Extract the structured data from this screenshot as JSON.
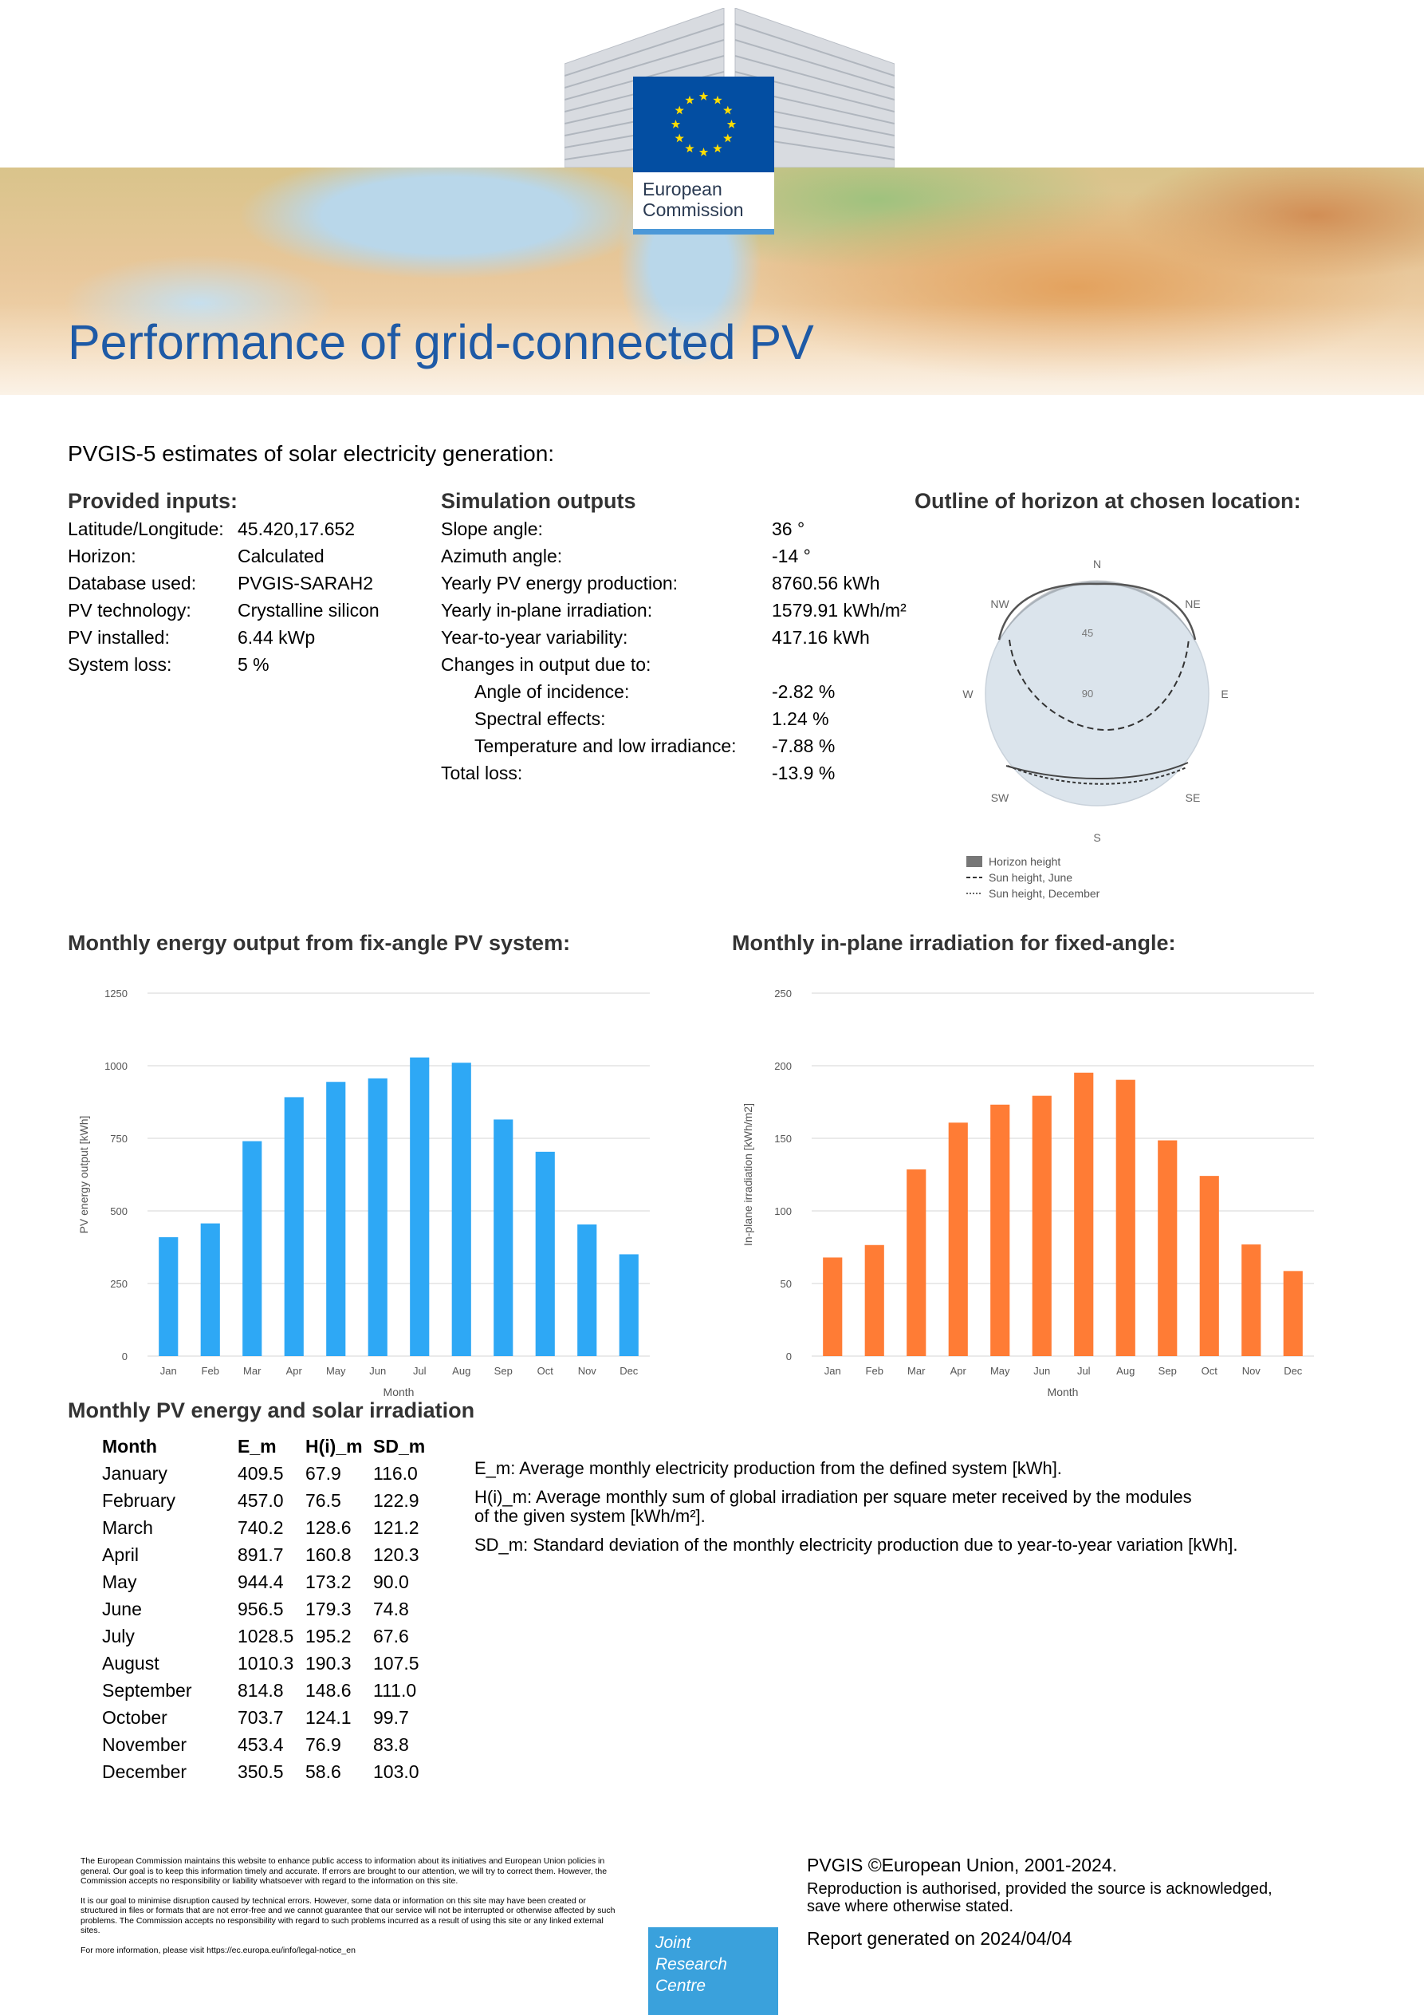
{
  "header": {
    "title": "Performance of grid-connected PV",
    "logo_line1": "European",
    "logo_line2": "Commission"
  },
  "subtitle": "PVGIS-5 estimates of solar electricity generation:",
  "inputs": {
    "heading": "Provided inputs:",
    "rows": [
      {
        "label": "Latitude/Longitude:",
        "value": "45.420,17.652"
      },
      {
        "label": "Horizon:",
        "value": "Calculated"
      },
      {
        "label": "Database used:",
        "value": "PVGIS-SARAH2"
      },
      {
        "label": "PV technology:",
        "value": "Crystalline silicon"
      },
      {
        "label": "PV installed:",
        "value": "6.44 kWp"
      },
      {
        "label": "System loss:",
        "value": "5 %"
      }
    ]
  },
  "outputs": {
    "heading": "Simulation outputs",
    "rows": [
      {
        "label": "Slope angle:",
        "value": "36 °"
      },
      {
        "label": "Azimuth angle:",
        "value": "-14 °"
      },
      {
        "label": "Yearly PV energy production:",
        "value": "8760.56 kWh"
      },
      {
        "label": "Yearly in-plane irradiation:",
        "value": "1579.91 kWh/m²"
      },
      {
        "label": "Year-to-year variability:",
        "value": "417.16 kWh"
      },
      {
        "label": "Changes in output due to:",
        "value": ""
      },
      {
        "label": "Angle of incidence:",
        "value": "-2.82 %"
      },
      {
        "label": "Spectral effects:",
        "value": "1.24 %"
      },
      {
        "label": "Temperature and low irradiance:",
        "value": "-7.88 %"
      },
      {
        "label": "Total loss:",
        "value": "-13.9 %"
      }
    ]
  },
  "horizon": {
    "heading": "Outline of horizon at chosen location:",
    "compass": {
      "n": "N",
      "ne": "NE",
      "e": "E",
      "se": "SE",
      "s": "S",
      "sw": "SW",
      "w": "W",
      "nw": "NW"
    },
    "ring_45": "45",
    "ring_90": "90",
    "legend": [
      "Horizon height",
      "Sun height, June",
      "Sun height, December"
    ]
  },
  "energy_chart_heading": "Monthly energy output from fix-angle PV system:",
  "irradiation_chart_heading": "Monthly in-plane irradiation for fixed-angle:",
  "chart_data": [
    {
      "type": "bar",
      "categories": [
        "Jan",
        "Feb",
        "Mar",
        "Apr",
        "May",
        "Jun",
        "Jul",
        "Aug",
        "Sep",
        "Oct",
        "Nov",
        "Dec"
      ],
      "values": [
        409.5,
        457.0,
        740.2,
        891.7,
        944.4,
        956.5,
        1028.5,
        1010.3,
        814.8,
        703.7,
        453.4,
        350.5
      ],
      "yticks": [
        "0",
        "250",
        "500",
        "750",
        "1000",
        "1250"
      ],
      "ylim": [
        0,
        1250
      ],
      "xlabel": "Month",
      "ylabel": "PV energy output [kWh]",
      "color": "#2ea8f5",
      "grid": true
    },
    {
      "type": "bar",
      "categories": [
        "Jan",
        "Feb",
        "Mar",
        "Apr",
        "May",
        "Jun",
        "Jul",
        "Aug",
        "Sep",
        "Oct",
        "Nov",
        "Dec"
      ],
      "values": [
        67.9,
        76.5,
        128.6,
        160.8,
        173.2,
        179.3,
        195.2,
        190.3,
        148.6,
        124.1,
        76.9,
        58.6
      ],
      "yticks": [
        "0",
        "50",
        "100",
        "150",
        "200",
        "250"
      ],
      "ylim": [
        0,
        250
      ],
      "xlabel": "Month",
      "ylabel": "In-plane irradiation [kWh/m2]",
      "color": "#ff7c35",
      "grid": true
    }
  ],
  "table": {
    "heading": "Monthly PV energy and solar irradiation",
    "columns": [
      "Month",
      "E_m",
      "H(i)_m",
      "SD_m"
    ],
    "rows": [
      [
        "January",
        "409.5",
        "67.9",
        "116.0"
      ],
      [
        "February",
        "457.0",
        "76.5",
        "122.9"
      ],
      [
        "March",
        "740.2",
        "128.6",
        "121.2"
      ],
      [
        "April",
        "891.7",
        "160.8",
        "120.3"
      ],
      [
        "May",
        "944.4",
        "173.2",
        "90.0"
      ],
      [
        "June",
        "956.5",
        "179.3",
        "74.8"
      ],
      [
        "July",
        "1028.5",
        "195.2",
        "67.6"
      ],
      [
        "August",
        "1010.3",
        "190.3",
        "107.5"
      ],
      [
        "September",
        "814.8",
        "148.6",
        "111.0"
      ],
      [
        "October",
        "703.7",
        "124.1",
        "99.7"
      ],
      [
        "November",
        "453.4",
        "76.9",
        "83.8"
      ],
      [
        "December",
        "350.5",
        "58.6",
        "103.0"
      ]
    ],
    "notes": {
      "em": "E_m: Average monthly electricity production from the defined system [kWh].",
      "hm_line1": "H(i)_m: Average monthly sum of global irradiation per square meter received by the modules",
      "hm_line2": "of the given system [kWh/m²].",
      "sd": "SD_m: Standard deviation of the monthly electricity production due to year-to-year variation [kWh]."
    }
  },
  "footer": {
    "disclaimer_p1": "The European Commission maintains this website to enhance public access to information about its initiatives and European Union policies in general. Our goal is to keep this information timely and accurate. If errors are brought to our attention, we will try to correct them. However, the Commission accepts no responsibility or liability whatsoever with regard to the information on this site.",
    "disclaimer_p2": "It is our goal to minimise disruption caused by technical errors. However, some data or information on this site may have been created or structured in files or formats that are not error-free and we cannot guarantee that our service will not be interrupted or otherwise affected by such problems. The Commission accepts no responsibility with regard to such problems incurred as a result of using this site or any linked external sites.",
    "disclaimer_p3": "For more information, please visit https://ec.europa.eu/info/legal-notice_en",
    "jrc_line1": "Joint",
    "jrc_line2": "Research",
    "jrc_line3": "Centre",
    "copyright": "PVGIS ©European Union, 2001-2024.",
    "reproduction_line1": "Reproduction is authorised, provided the source is acknowledged,",
    "reproduction_line2": "save where otherwise stated.",
    "generated": "Report generated on 2024/04/04"
  }
}
